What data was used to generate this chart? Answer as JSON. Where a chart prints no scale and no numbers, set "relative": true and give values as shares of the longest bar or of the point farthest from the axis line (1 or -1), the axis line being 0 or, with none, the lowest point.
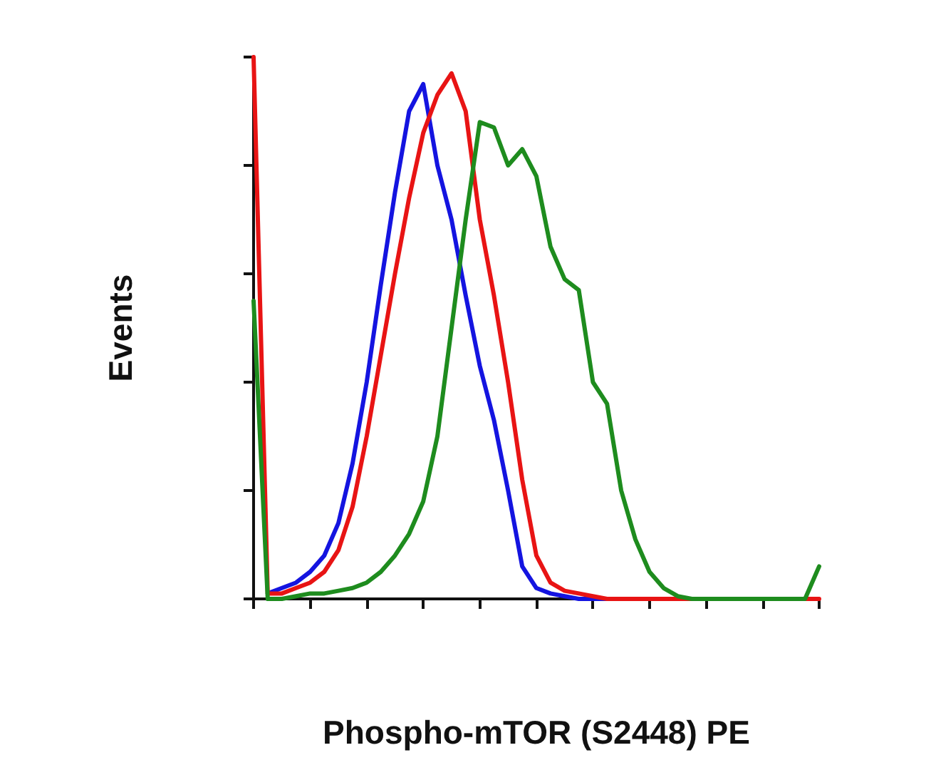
{
  "chart_data": {
    "type": "line",
    "relative": true,
    "xlabel": "Phospho-mTOR (S2448) PE",
    "ylabel": "Events",
    "marker": "none",
    "line_style": "solid",
    "grid": false,
    "categories": [
      null,
      null,
      null,
      null,
      null,
      null,
      null,
      null,
      null,
      null,
      null,
      null,
      null,
      null,
      null,
      null,
      null,
      null,
      null,
      null,
      null,
      null,
      null,
      null,
      null,
      null,
      null,
      null,
      null,
      null,
      null,
      null,
      null,
      null,
      null,
      null,
      null,
      null,
      null,
      null,
      null
    ],
    "series": [
      {
        "color": "#1414e0",
        "values": [
          null,
          0.01,
          0.02,
          0.03,
          0.05,
          0.08,
          0.14,
          0.25,
          0.4,
          0.58,
          0.75,
          0.9,
          0.95,
          0.8,
          0.7,
          0.56,
          0.43,
          0.33,
          0.2,
          0.06,
          0.02,
          0.01,
          0.005,
          0,
          0,
          0,
          0,
          null,
          null,
          null,
          null,
          null,
          null,
          null,
          null,
          null,
          null,
          null,
          null,
          null,
          null
        ]
      },
      {
        "color": "#e81414",
        "values": [
          1,
          0.01,
          0.01,
          0.02,
          0.03,
          0.05,
          0.09,
          0.17,
          0.3,
          0.45,
          0.6,
          0.74,
          0.86,
          0.93,
          0.97,
          0.9,
          0.7,
          0.56,
          0.4,
          0.22,
          0.08,
          0.03,
          0.015,
          0.01,
          0.005,
          0,
          0,
          0,
          0,
          0,
          0,
          0,
          0,
          0,
          0,
          0,
          0,
          0,
          0,
          0,
          0
        ]
      },
      {
        "color": "#1e8c1e",
        "values": [
          0.55,
          0,
          0,
          0.005,
          0.01,
          0.01,
          0.015,
          0.02,
          0.03,
          0.05,
          0.08,
          0.12,
          0.18,
          0.3,
          0.5,
          0.7,
          0.88,
          0.87,
          0.8,
          0.83,
          0.78,
          0.65,
          0.59,
          0.57,
          0.4,
          0.36,
          0.2,
          0.11,
          0.05,
          0.02,
          0.005,
          0,
          0,
          0,
          0,
          0,
          0,
          0,
          0,
          0,
          0.06
        ]
      }
    ]
  }
}
